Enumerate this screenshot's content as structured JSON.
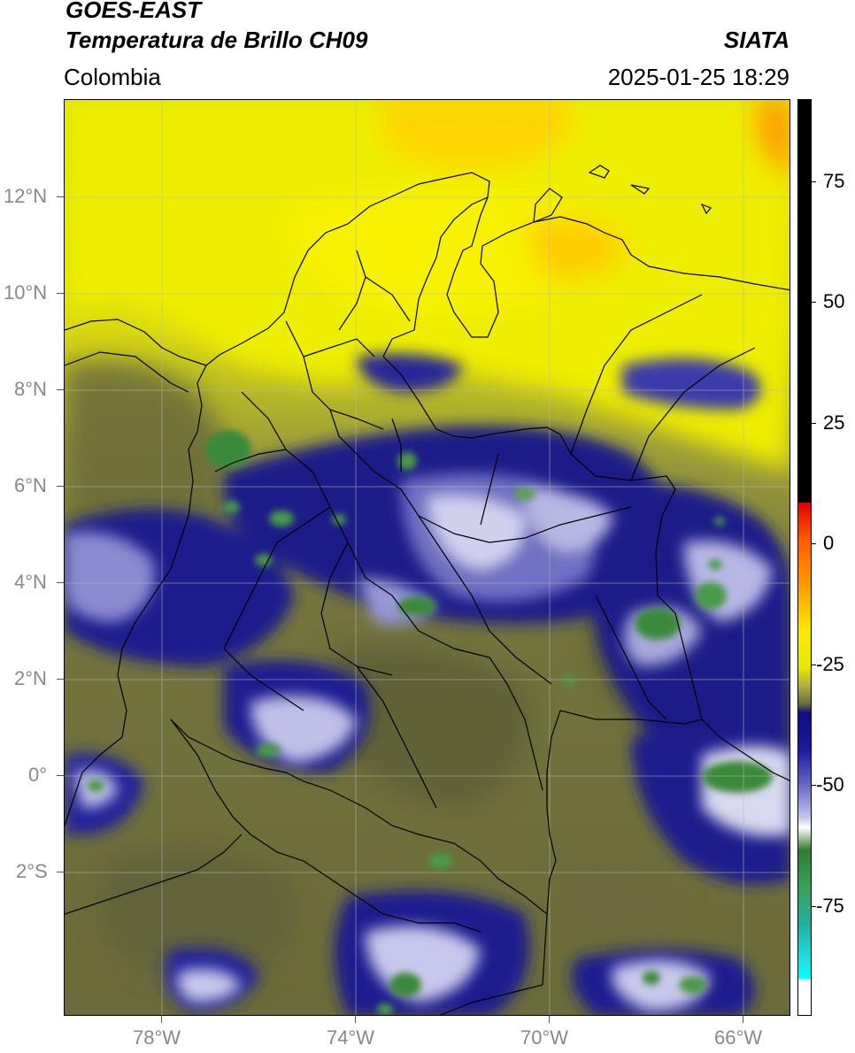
{
  "header": {
    "satellite": "GOES-EAST",
    "product": "Temperatura de Brillo CH09",
    "region": "Colombia",
    "source": "SIATA",
    "datetime": "2025-01-25 18:29"
  },
  "map": {
    "lat_labels": [
      "12°N",
      "10°N",
      "8°N",
      "6°N",
      "4°N",
      "2°N",
      "0°",
      "2°S"
    ],
    "lon_labels": [
      "78°W",
      "74°W",
      "70°W",
      "66°W"
    ]
  },
  "colorbar": {
    "labels": [
      "75",
      "50",
      "25",
      "0",
      "-25",
      "-50",
      "-75"
    ]
  },
  "colors": {
    "warm_yellow": "#f2f200",
    "olive": "#7a7a3c",
    "dark_olive": "#5c5c34",
    "navy": "#14147a",
    "blue": "#3a3aaa",
    "white_cloud": "#e8e8f4",
    "green_core": "#3a8a3a",
    "orange": "#ffa800"
  }
}
